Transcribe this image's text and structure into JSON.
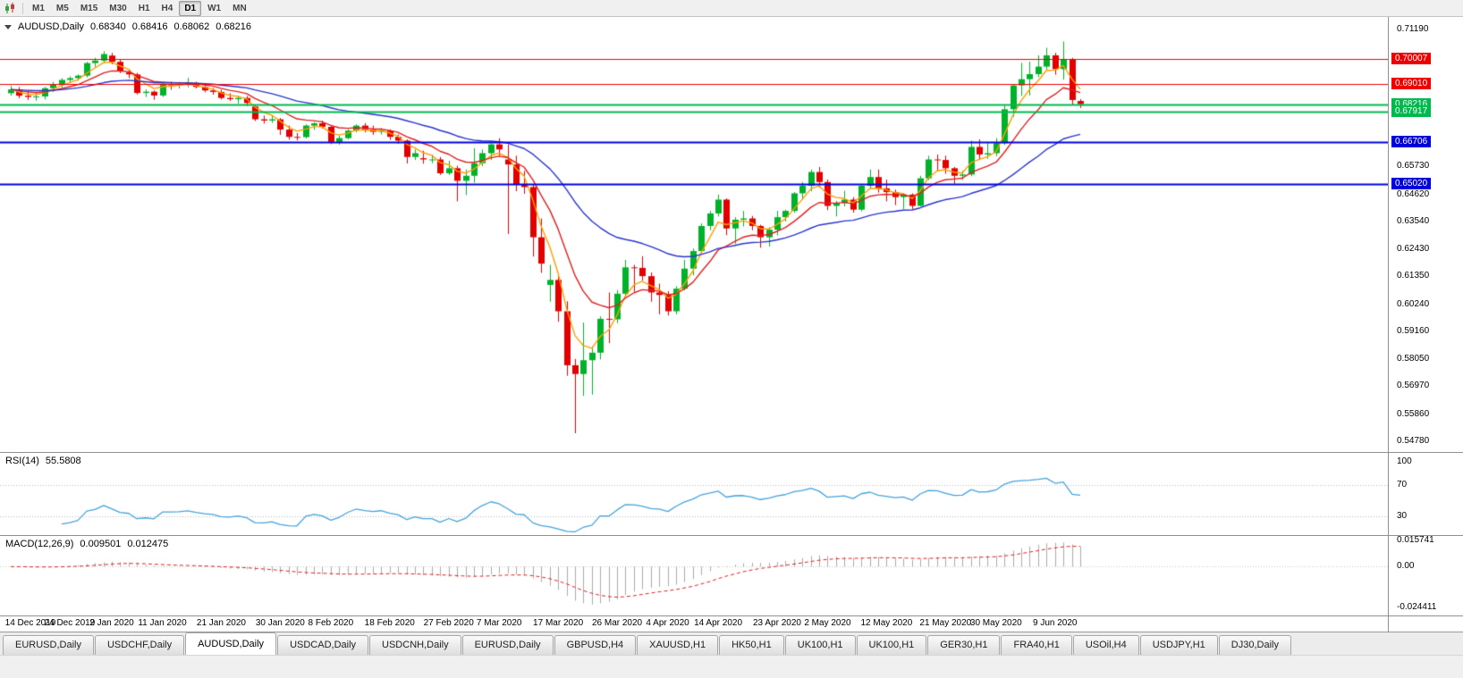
{
  "toolbar": {
    "timeframes": [
      "M1",
      "M5",
      "M15",
      "M30",
      "H1",
      "H4",
      "D1",
      "W1",
      "MN"
    ],
    "active_timeframe": "D1"
  },
  "chart": {
    "symbol_label": "AUDUSD,Daily",
    "open": "0.68340",
    "high": "0.68416",
    "low": "0.68062",
    "close": "0.68216",
    "price_axis_labels": [
      "0.71190",
      "0.65730",
      "0.64620",
      "0.63540",
      "0.62430",
      "0.61350",
      "0.60240",
      "0.59160",
      "0.58050",
      "0.56970",
      "0.55860",
      "0.54780"
    ],
    "price_min": 0.5478,
    "price_max": 0.7119,
    "hlines": [
      {
        "price": 0.70007,
        "label": "0.70007",
        "color": "#ee0000",
        "width": 1
      },
      {
        "price": 0.6901,
        "label": "0.69010",
        "color": "#ee0000",
        "width": 1
      },
      {
        "price": 0.68216,
        "label": "0.68216",
        "color": "#00b94e",
        "width": 2
      },
      {
        "price": 0.67917,
        "label": "0.67917",
        "color": "#00b94e",
        "width": 2
      },
      {
        "price": 0.66706,
        "label": "0.66706",
        "color": "#0000dd",
        "width": 2
      },
      {
        "price": 0.6502,
        "label": "0.65020",
        "color": "#0000dd",
        "width": 2
      }
    ]
  },
  "rsi": {
    "name": "RSI(14)",
    "value": "55.5808",
    "axis": [
      {
        "label": "100",
        "value": 100
      },
      {
        "label": "70",
        "value": 70
      },
      {
        "label": "30",
        "value": 30
      }
    ],
    "levels": [
      70,
      30
    ],
    "color": "#44a3dc"
  },
  "macd": {
    "name": "MACD(12,26,9)",
    "value_main": "0.009501",
    "value_signal": "0.012475",
    "axis": [
      {
        "label": "0.015741",
        "value": 0.015741
      },
      {
        "label": "0.00",
        "value": 0
      },
      {
        "label": "-0.024411",
        "value": -0.024411
      }
    ],
    "hist_color": "#ababab",
    "signal_color": "#e02020"
  },
  "tabs": {
    "items": [
      "EURUSD,Daily",
      "USDCHF,Daily",
      "AUDUSD,Daily",
      "USDCAD,Daily",
      "USDCNH,Daily",
      "EURUSD,Daily",
      "GBPUSD,H4",
      "XAUUSD,H1",
      "HK50,H1",
      "UK100,H1",
      "UK100,H1",
      "GER30,H1",
      "FRA40,H1",
      "USOil,H4",
      "USDJPY,H1",
      "DJ30,Daily"
    ],
    "active_index": 2
  },
  "colors": {
    "up": "#00b22a",
    "down": "#e30000",
    "ma_fast": "#ff9d00",
    "ma_mid": "#e02020",
    "ma_slow": "#2a35cc"
  },
  "chart_data": {
    "type": "candlestick",
    "symbol": "AUDUSD",
    "timeframe": "Daily",
    "y_range": [
      0.5478,
      0.7119
    ],
    "ohlc_format": "[open, high, low, close]",
    "candles": [
      [
        0.6865,
        0.6895,
        0.6855,
        0.688
      ],
      [
        0.688,
        0.689,
        0.6845,
        0.6855
      ],
      [
        0.6855,
        0.6875,
        0.6838,
        0.685
      ],
      [
        0.685,
        0.6866,
        0.6835,
        0.6852
      ],
      [
        0.6852,
        0.689,
        0.684,
        0.6885
      ],
      [
        0.6885,
        0.691,
        0.687,
        0.69
      ],
      [
        0.69,
        0.6925,
        0.6888,
        0.6918
      ],
      [
        0.6918,
        0.6932,
        0.6905,
        0.6925
      ],
      [
        0.6925,
        0.694,
        0.6915,
        0.6935
      ],
      [
        0.6935,
        0.699,
        0.6928,
        0.6985
      ],
      [
        0.6985,
        0.7006,
        0.697,
        0.6995
      ],
      [
        0.6995,
        0.7032,
        0.6985,
        0.7021
      ],
      [
        0.7015,
        0.7026,
        0.698,
        0.699
      ],
      [
        0.699,
        0.7,
        0.6945,
        0.6952
      ],
      [
        0.6948,
        0.6958,
        0.6925,
        0.694
      ],
      [
        0.694,
        0.6946,
        0.686,
        0.6866
      ],
      [
        0.6866,
        0.688,
        0.685,
        0.6871
      ],
      [
        0.6871,
        0.6876,
        0.6839,
        0.6856
      ],
      [
        0.6856,
        0.6906,
        0.685,
        0.69
      ],
      [
        0.69,
        0.6911,
        0.6879,
        0.6899
      ],
      [
        0.6899,
        0.691,
        0.6884,
        0.6901
      ],
      [
        0.6901,
        0.6926,
        0.6889,
        0.6906
      ],
      [
        0.6906,
        0.6911,
        0.6884,
        0.689
      ],
      [
        0.689,
        0.69,
        0.6869,
        0.6876
      ],
      [
        0.6876,
        0.6886,
        0.6859,
        0.687
      ],
      [
        0.687,
        0.6879,
        0.684,
        0.6846
      ],
      [
        0.6846,
        0.6865,
        0.6834,
        0.6841
      ],
      [
        0.6841,
        0.6856,
        0.6824,
        0.6846
      ],
      [
        0.6846,
        0.6854,
        0.6814,
        0.6826
      ],
      [
        0.6812,
        0.682,
        0.6754,
        0.6761
      ],
      [
        0.6761,
        0.6776,
        0.6744,
        0.6756
      ],
      [
        0.6756,
        0.6775,
        0.6747,
        0.6761
      ],
      [
        0.6761,
        0.6766,
        0.6699,
        0.672
      ],
      [
        0.672,
        0.6736,
        0.668,
        0.6691
      ],
      [
        0.6691,
        0.6706,
        0.6677,
        0.669
      ],
      [
        0.669,
        0.6741,
        0.6685,
        0.6736
      ],
      [
        0.6736,
        0.675,
        0.6719,
        0.6745
      ],
      [
        0.6745,
        0.6756,
        0.6724,
        0.6731
      ],
      [
        0.6731,
        0.6736,
        0.6662,
        0.6671
      ],
      [
        0.6671,
        0.6696,
        0.666,
        0.6686
      ],
      [
        0.6686,
        0.6721,
        0.6681,
        0.6716
      ],
      [
        0.6716,
        0.6741,
        0.6709,
        0.6736
      ],
      [
        0.6736,
        0.6746,
        0.6709,
        0.6721
      ],
      [
        0.6721,
        0.6736,
        0.6699,
        0.6711
      ],
      [
        0.6711,
        0.6726,
        0.67,
        0.6716
      ],
      [
        0.6716,
        0.6721,
        0.6679,
        0.6691
      ],
      [
        0.6691,
        0.6701,
        0.6664,
        0.6676
      ],
      [
        0.6676,
        0.6681,
        0.6585,
        0.6611
      ],
      [
        0.6611,
        0.6641,
        0.6599,
        0.6626
      ],
      [
        0.6606,
        0.6636,
        0.6584,
        0.6601
      ],
      [
        0.6601,
        0.6621,
        0.6586,
        0.6601
      ],
      [
        0.6601,
        0.6611,
        0.6539,
        0.6546
      ],
      [
        0.6546,
        0.6596,
        0.6539,
        0.6566
      ],
      [
        0.6566,
        0.6576,
        0.6434,
        0.6516
      ],
      [
        0.6516,
        0.6561,
        0.6459,
        0.6536
      ],
      [
        0.6536,
        0.6646,
        0.6509,
        0.6586
      ],
      [
        0.6586,
        0.6641,
        0.6574,
        0.6626
      ],
      [
        0.6626,
        0.6666,
        0.6599,
        0.6661
      ],
      [
        0.6661,
        0.6686,
        0.6614,
        0.6641
      ],
      [
        0.6601,
        0.6661,
        0.6304,
        0.6581
      ],
      [
        0.6581,
        0.6616,
        0.6474,
        0.6501
      ],
      [
        0.6501,
        0.6556,
        0.6464,
        0.6491
      ],
      [
        0.6491,
        0.6501,
        0.6214,
        0.6291
      ],
      [
        0.6291,
        0.6366,
        0.6149,
        0.6186
      ],
      [
        0.6101,
        0.6181,
        0.6034,
        0.6121
      ],
      [
        0.6121,
        0.6146,
        0.5954,
        0.5996
      ],
      [
        0.5996,
        0.6036,
        0.5739,
        0.5781
      ],
      [
        0.5781,
        0.5806,
        0.551,
        0.5746
      ],
      [
        0.5746,
        0.5951,
        0.5659,
        0.5801
      ],
      [
        0.5801,
        0.5856,
        0.5664,
        0.5831
      ],
      [
        0.5831,
        0.5976,
        0.5804,
        0.5966
      ],
      [
        0.5966,
        0.6071,
        0.5869,
        0.5964
      ],
      [
        0.5964,
        0.6081,
        0.5949,
        0.6066
      ],
      [
        0.6066,
        0.6201,
        0.6054,
        0.6171
      ],
      [
        0.6171,
        0.6181,
        0.6074,
        0.6169
      ],
      [
        0.6169,
        0.6216,
        0.6119,
        0.6136
      ],
      [
        0.6136,
        0.6151,
        0.6034,
        0.6071
      ],
      [
        0.6071,
        0.6106,
        0.5984,
        0.6061
      ],
      [
        0.6061,
        0.6076,
        0.5979,
        0.5996
      ],
      [
        0.5996,
        0.6096,
        0.5984,
        0.6086
      ],
      [
        0.6086,
        0.6201,
        0.6079,
        0.6166
      ],
      [
        0.6166,
        0.6246,
        0.6139,
        0.6236
      ],
      [
        0.6236,
        0.6346,
        0.6229,
        0.6336
      ],
      [
        0.6336,
        0.6396,
        0.6319,
        0.6386
      ],
      [
        0.6386,
        0.6461,
        0.6374,
        0.6441
      ],
      [
        0.6441,
        0.6446,
        0.6299,
        0.6326
      ],
      [
        0.6326,
        0.6371,
        0.6264,
        0.6361
      ],
      [
        0.6361,
        0.6396,
        0.6334,
        0.6366
      ],
      [
        0.6366,
        0.6376,
        0.6319,
        0.6336
      ],
      [
        0.6336,
        0.6341,
        0.6249,
        0.6291
      ],
      [
        0.6291,
        0.6331,
        0.6254,
        0.6321
      ],
      [
        0.6321,
        0.6396,
        0.6299,
        0.6371
      ],
      [
        0.6371,
        0.6401,
        0.6354,
        0.6396
      ],
      [
        0.6396,
        0.6471,
        0.6389,
        0.6466
      ],
      [
        0.6466,
        0.6511,
        0.6439,
        0.6496
      ],
      [
        0.6496,
        0.6561,
        0.6474,
        0.6551
      ],
      [
        0.6551,
        0.6571,
        0.6489,
        0.6511
      ],
      [
        0.6511,
        0.6521,
        0.6399,
        0.6416
      ],
      [
        0.6416,
        0.6436,
        0.6374,
        0.6428
      ],
      [
        0.6428,
        0.6476,
        0.6414,
        0.6441
      ],
      [
        0.6441,
        0.6451,
        0.6389,
        0.6401
      ],
      [
        0.6401,
        0.6501,
        0.6394,
        0.6496
      ],
      [
        0.6496,
        0.6561,
        0.6484,
        0.6531
      ],
      [
        0.6531,
        0.6561,
        0.6469,
        0.6486
      ],
      [
        0.6486,
        0.6521,
        0.6434,
        0.6471
      ],
      [
        0.6471,
        0.6481,
        0.6419,
        0.6451
      ],
      [
        0.6451,
        0.6466,
        0.6404,
        0.6461
      ],
      [
        0.6461,
        0.6466,
        0.6404,
        0.6416
      ],
      [
        0.6416,
        0.6536,
        0.6414,
        0.6526
      ],
      [
        0.6526,
        0.6616,
        0.6519,
        0.6601
      ],
      [
        0.6601,
        0.6621,
        0.6554,
        0.6599
      ],
      [
        0.6599,
        0.6616,
        0.6544,
        0.6566
      ],
      [
        0.6566,
        0.6571,
        0.6504,
        0.6536
      ],
      [
        0.6536,
        0.6556,
        0.6519,
        0.6541
      ],
      [
        0.6541,
        0.6676,
        0.6534,
        0.6651
      ],
      [
        0.6651,
        0.6681,
        0.6599,
        0.6621
      ],
      [
        0.6621,
        0.6666,
        0.6604,
        0.6626
      ],
      [
        0.6626,
        0.6686,
        0.6614,
        0.6666
      ],
      [
        0.6666,
        0.6816,
        0.6659,
        0.6801
      ],
      [
        0.6801,
        0.6901,
        0.6771,
        0.6896
      ],
      [
        0.6896,
        0.6986,
        0.6854,
        0.6921
      ],
      [
        0.6921,
        0.6991,
        0.6856,
        0.6941
      ],
      [
        0.6941,
        0.7016,
        0.6929,
        0.6971
      ],
      [
        0.6971,
        0.7046,
        0.6959,
        0.7016
      ],
      [
        0.7016,
        0.7026,
        0.6939,
        0.6961
      ],
      [
        0.6961,
        0.7071,
        0.6919,
        0.7001
      ],
      [
        0.7001,
        0.7006,
        0.6819,
        0.6838
      ],
      [
        0.6834,
        0.68416,
        0.68062,
        0.68216
      ]
    ],
    "x_tick_labels": [
      {
        "index": 0,
        "label": "14 Dec 2019"
      },
      {
        "index": 7,
        "label": "24 Dec 2019"
      },
      {
        "index": 12,
        "label": "2 Jan 2020"
      },
      {
        "index": 18,
        "label": "11 Jan 2020"
      },
      {
        "index": 25,
        "label": "21 Jan 2020"
      },
      {
        "index": 32,
        "label": "30 Jan 2020"
      },
      {
        "index": 38,
        "label": "8 Feb 2020"
      },
      {
        "index": 45,
        "label": "18 Feb 2020"
      },
      {
        "index": 52,
        "label": "27 Feb 2020"
      },
      {
        "index": 58,
        "label": "7 Mar 2020"
      },
      {
        "index": 65,
        "label": "17 Mar 2020"
      },
      {
        "index": 72,
        "label": "26 Mar 2020"
      },
      {
        "index": 78,
        "label": "4 Apr 2020"
      },
      {
        "index": 84,
        "label": "14 Apr 2020"
      },
      {
        "index": 91,
        "label": "23 Apr 2020"
      },
      {
        "index": 97,
        "label": "2 May 2020"
      },
      {
        "index": 104,
        "label": "12 May 2020"
      },
      {
        "index": 111,
        "label": "21 May 2020"
      },
      {
        "index": 117,
        "label": "30 May 2020"
      },
      {
        "index": 124,
        "label": "9 Jun 2020"
      }
    ],
    "moving_averages": [
      {
        "period": 4,
        "color_key": "ma_fast"
      },
      {
        "period": 10,
        "color_key": "ma_mid"
      },
      {
        "period": 30,
        "color_key": "ma_slow"
      }
    ],
    "indicators": [
      {
        "name": "RSI",
        "period": 14,
        "current": 55.5808
      },
      {
        "name": "MACD",
        "fast": 12,
        "slow": 26,
        "signal": 9,
        "current_main": 0.009501,
        "current_signal": 0.012475
      }
    ]
  }
}
